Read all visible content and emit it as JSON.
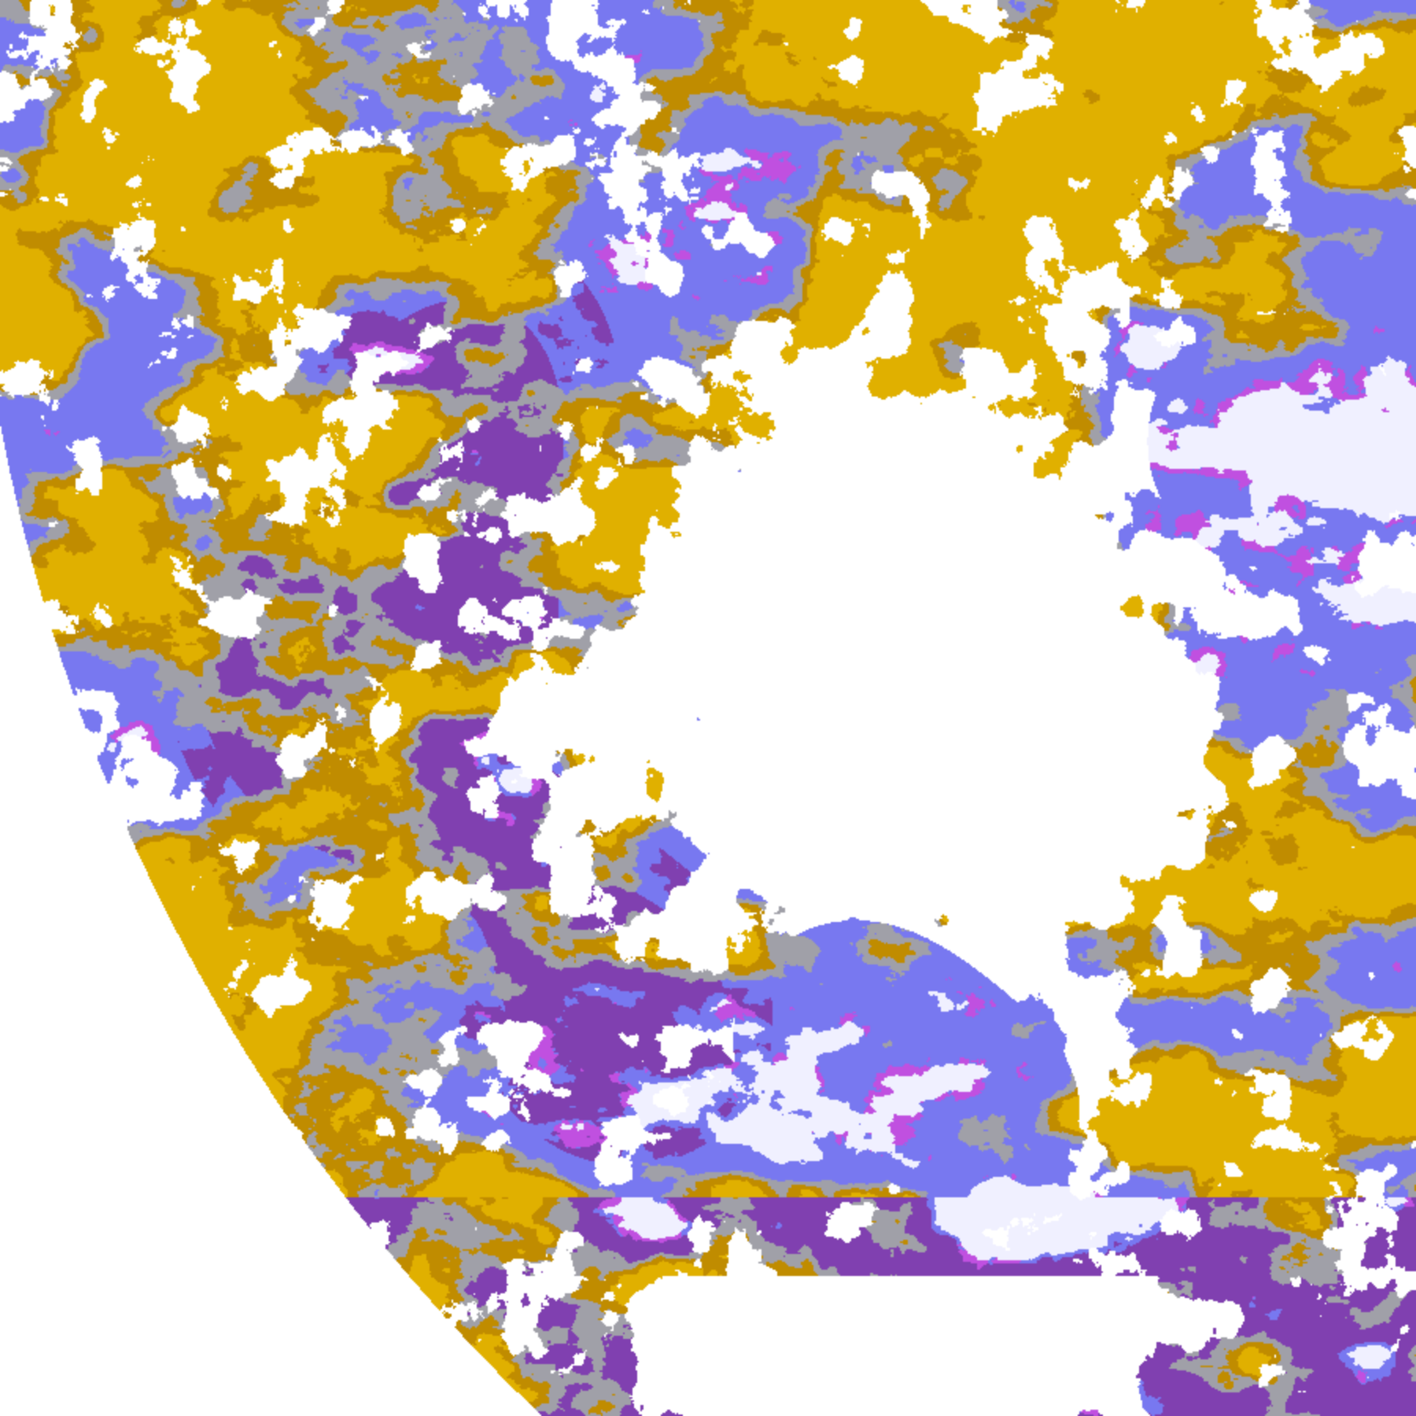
{
  "image": {
    "kind": "false-color satellite view of Earth's disk",
    "palette": {
      "space": "#ffffff",
      "clear": "#ffffff",
      "gold": "#e0b000",
      "dark_gold": "#c08c00",
      "gray": "#a0a0a8",
      "lavender": "#7878f0",
      "purple": "#8040b0",
      "magenta": "#c050e0",
      "bright_cloud": "#f0f0ff"
    }
  }
}
